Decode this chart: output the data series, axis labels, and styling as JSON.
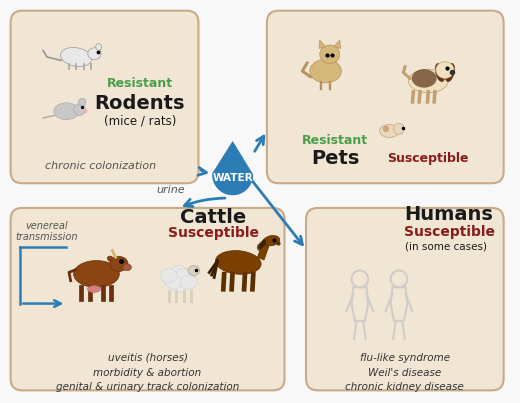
{
  "background_color": "#f8f8f8",
  "panel_bg": "#f0e6d3",
  "panel_edge": "#c8aa88",
  "water_blue": "#2c7db5",
  "water_label": "WATER",
  "arrow_color": "#2c7db5",
  "green_color": "#4a9e4a",
  "red_color": "#8b1a1a",
  "black_color": "#1a1a1a",
  "rodents_resistant": "Resistant",
  "rodents_main": "Rodents",
  "rodents_sub": "(mice / rats)",
  "rodents_note": "chronic colonization",
  "pets_resistant": "Resistant",
  "pets_main": "Pets",
  "pets_susceptible": "Susceptible",
  "cattle_main": "Cattle",
  "cattle_susceptible": "Susceptible",
  "cattle_venereal": "venereal\ntransmission",
  "cattle_notes": "uveitis (horses)\nmorbidity & abortion\ngenital & urinary track colonization",
  "humans_main": "Humans",
  "humans_susceptible": "Susceptible",
  "humans_sub": "(in some cases)",
  "humans_notes": "flu-like syndrome\nWeil's disease\nchronic kidney disease",
  "urine_label": "urine",
  "cow_color": "#8B4513",
  "horse_color": "#7B3F00",
  "sheep_color": "#e8e8e8",
  "cat_color": "#d4b896",
  "dog_dark": "#5C3317",
  "dog_light": "#f5e6d0",
  "rat_color": "#d0d0d0",
  "human_color": "#d0ccc8"
}
